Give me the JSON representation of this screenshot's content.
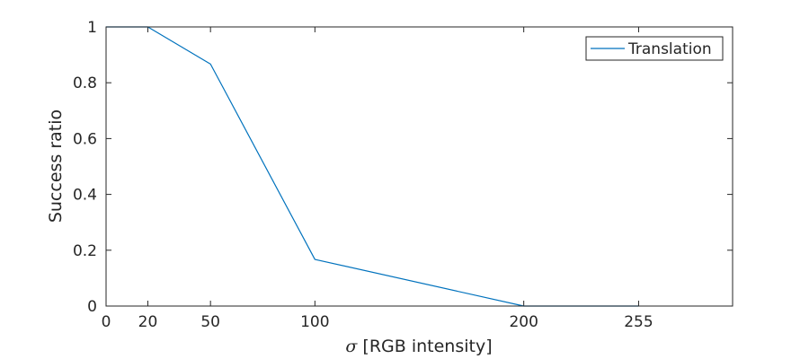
{
  "chart_data": {
    "type": "line",
    "title": "",
    "xlabel": "σ [RGB intensity]",
    "ylabel": "Success ratio",
    "xlim": [
      0,
      300
    ],
    "ylim": [
      0,
      1
    ],
    "xticks": [
      0,
      20,
      50,
      100,
      200,
      255
    ],
    "yticks": [
      0,
      0.2,
      0.4,
      0.6,
      0.8,
      1
    ],
    "grid": false,
    "box": true,
    "legend_position": "top-right",
    "series": [
      {
        "name": "Translation",
        "color": "#0072bd",
        "x": [
          0,
          20,
          50,
          100,
          200,
          255
        ],
        "y": [
          1,
          1,
          0.867,
          0.167,
          0,
          0
        ]
      }
    ]
  }
}
